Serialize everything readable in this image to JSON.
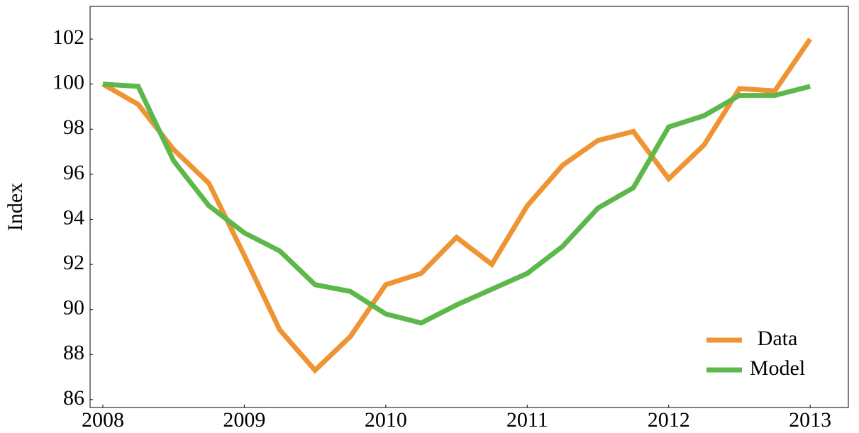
{
  "chart_data": {
    "type": "line",
    "ylabel": "Index",
    "x": [
      2008,
      2008.25,
      2008.5,
      2008.75,
      2009,
      2009.25,
      2009.5,
      2009.75,
      2010,
      2010.25,
      2010.5,
      2010.75,
      2011,
      2011.25,
      2011.5,
      2011.75,
      2012,
      2012.25,
      2012.5,
      2012.75,
      2013
    ],
    "series": [
      {
        "name": "Data",
        "color": "#ef9433",
        "values": [
          100.0,
          99.1,
          97.1,
          95.6,
          92.4,
          89.1,
          87.3,
          88.8,
          91.1,
          91.6,
          93.2,
          92.0,
          94.6,
          96.4,
          97.5,
          97.9,
          95.8,
          97.3,
          99.8,
          99.7,
          102.0
        ]
      },
      {
        "name": "Model",
        "color": "#5cb84a",
        "values": [
          100.0,
          99.9,
          96.6,
          94.6,
          93.4,
          92.6,
          91.1,
          90.8,
          89.8,
          89.4,
          90.2,
          90.9,
          91.6,
          92.8,
          94.5,
          95.4,
          98.1,
          98.6,
          99.5,
          99.5,
          99.9
        ]
      }
    ],
    "xlim": [
      2007.91,
      2013.27
    ],
    "xticks": [
      2008,
      2009,
      2010,
      2011,
      2012,
      2013
    ],
    "ylim": [
      85.65,
      103.45
    ],
    "yticks": [
      86,
      88,
      90,
      92,
      94,
      96,
      98,
      100,
      102
    ],
    "grid": false,
    "legend": "lower right"
  }
}
